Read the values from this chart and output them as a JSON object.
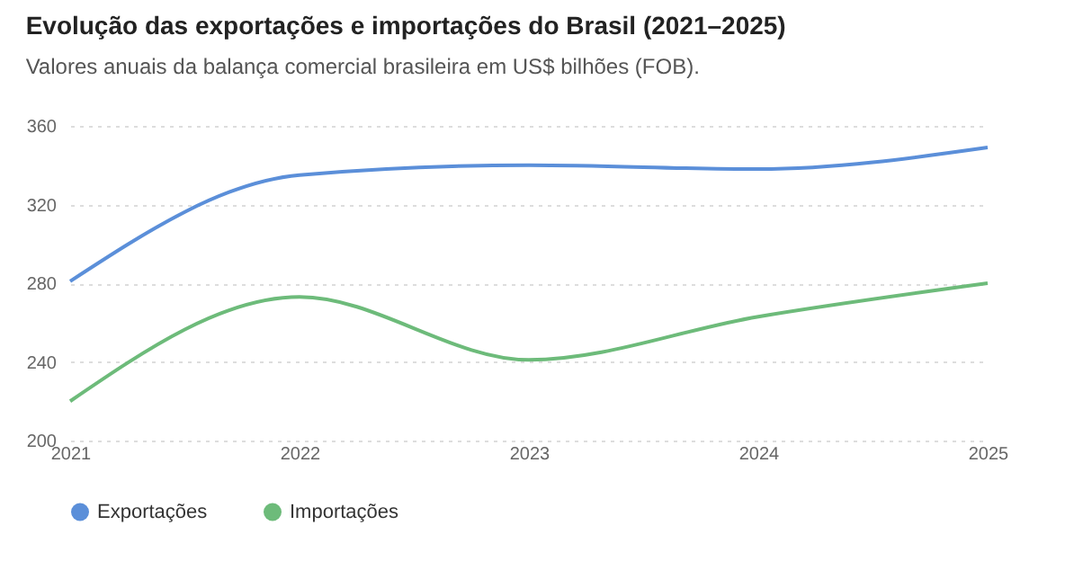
{
  "chart_data": {
    "type": "line",
    "title": "Evolução das exportações e importações do Brasil (2021–2025)",
    "subtitle": "Valores anuais da balança comercial brasileira em US$ bilhões (FOB).",
    "categories": [
      "2021",
      "2022",
      "2023",
      "2024",
      "2025"
    ],
    "series": [
      {
        "name": "Exportações",
        "color": "#5b8fd9",
        "values": [
          281,
          335,
          340,
          338,
          349
        ]
      },
      {
        "name": "Importações",
        "color": "#6dbb7a",
        "values": [
          220,
          273,
          241,
          263,
          280
        ]
      }
    ],
    "ylim": [
      200,
      360
    ],
    "yticks": [
      200,
      240,
      280,
      320,
      360
    ],
    "grid": "y",
    "legend": "bottom"
  }
}
